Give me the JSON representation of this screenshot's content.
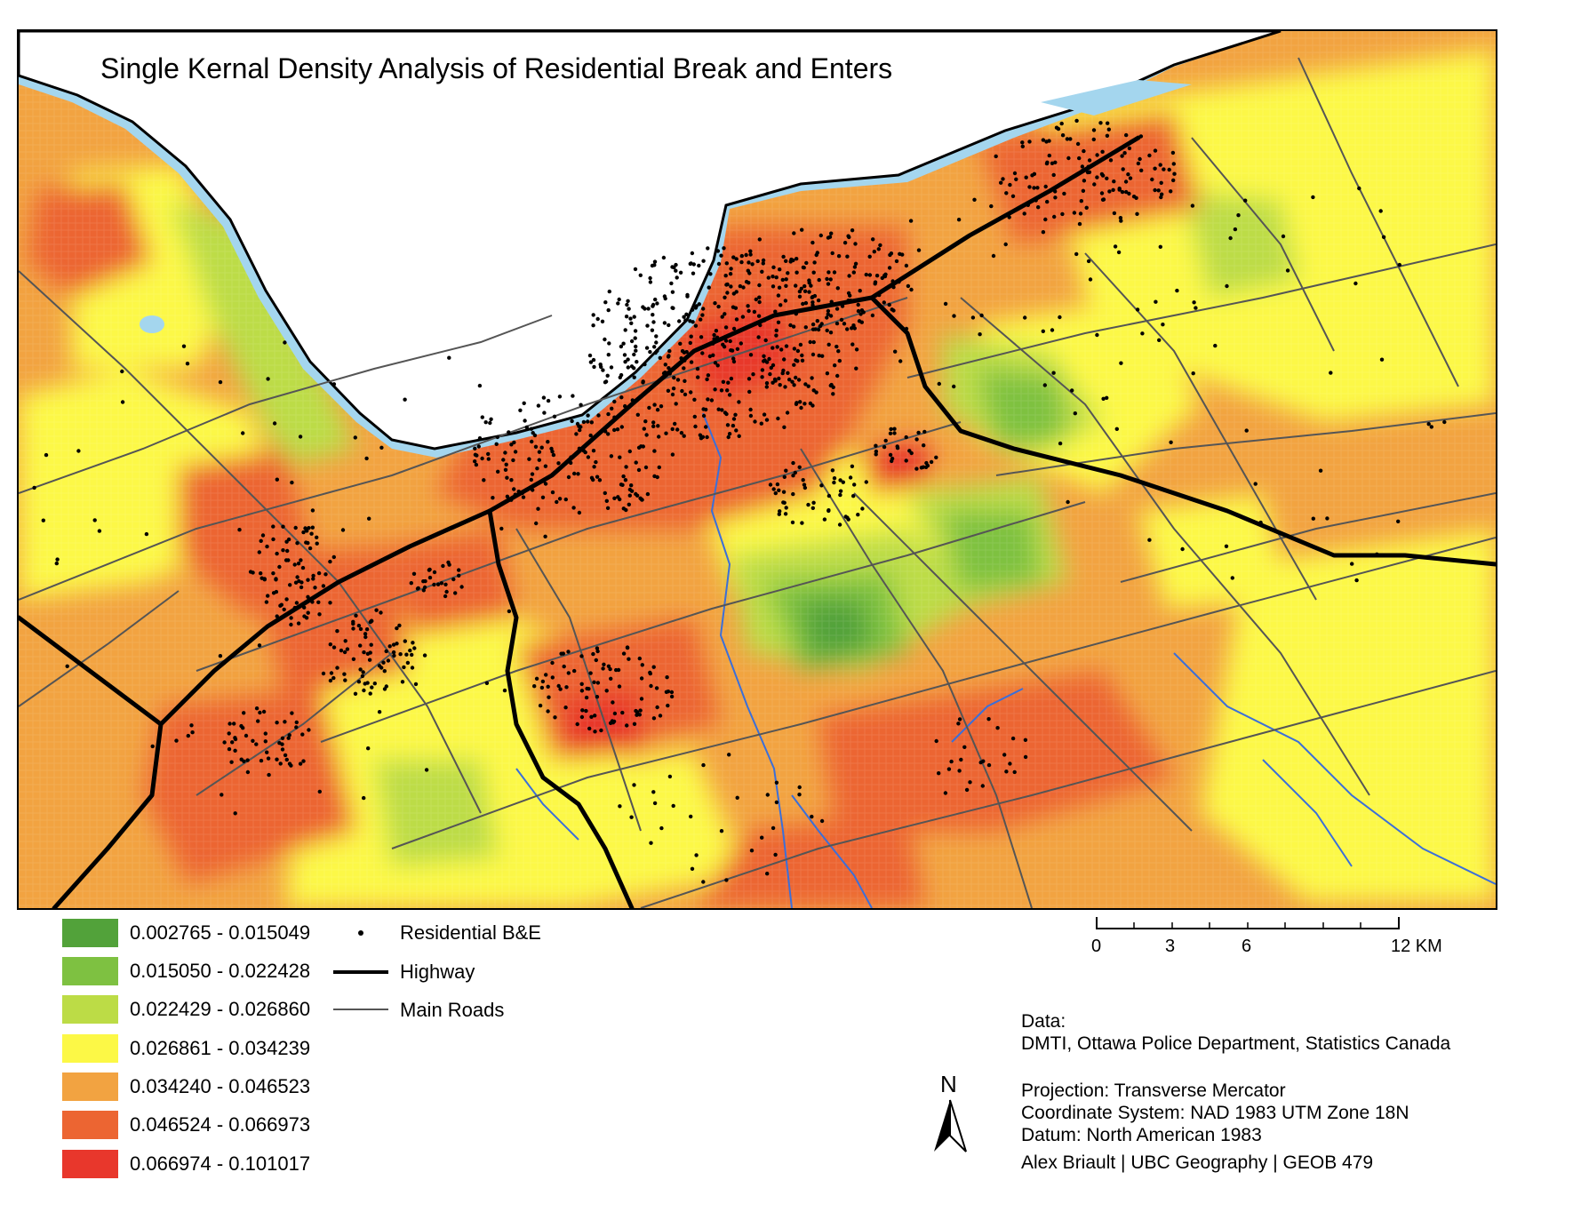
{
  "map": {
    "title": "Single Kernal Density Analysis of Residential Break and Enters"
  },
  "legend": {
    "classes": [
      {
        "label": "0.002765 - 0.015049",
        "color": "#52a23a"
      },
      {
        "label": "0.015050 - 0.022428",
        "color": "#7ec141"
      },
      {
        "label": "0.022429 - 0.026860",
        "color": "#bcdc46"
      },
      {
        "label": "0.026861 - 0.034239",
        "color": "#fcf846"
      },
      {
        "label": "0.034240 - 0.046523",
        "color": "#f2a341"
      },
      {
        "label": "0.046524 - 0.066973",
        "color": "#ec6532"
      },
      {
        "label": "0.066974 - 0.101017",
        "color": "#e8372c"
      }
    ],
    "symbols": [
      {
        "label": "Residential B&E",
        "kind": "dot"
      },
      {
        "label": "Highway",
        "kind": "thick-line"
      },
      {
        "label": "Main Roads",
        "kind": "thin-line"
      }
    ]
  },
  "scale_bar": {
    "ticks": [
      "0",
      "3",
      "6",
      "12 KM"
    ]
  },
  "north_arrow": {
    "letter": "N"
  },
  "credits": {
    "data_heading": "Data:",
    "data_sources": "DMTI, Ottawa Police Department, Statistics Canada",
    "projection": "Projection: Transverse Mercator",
    "coordinate_system": "Coordinate System: NAD 1983 UTM Zone 18N",
    "datum": "Datum: North American 1983",
    "author": "Alex Briault  |  UBC Geography  |  GEOB 479"
  },
  "colors": {
    "water": "#a4d6ee",
    "river": "#3b6fd9",
    "highway": "#000000",
    "main_road": "#555555"
  }
}
